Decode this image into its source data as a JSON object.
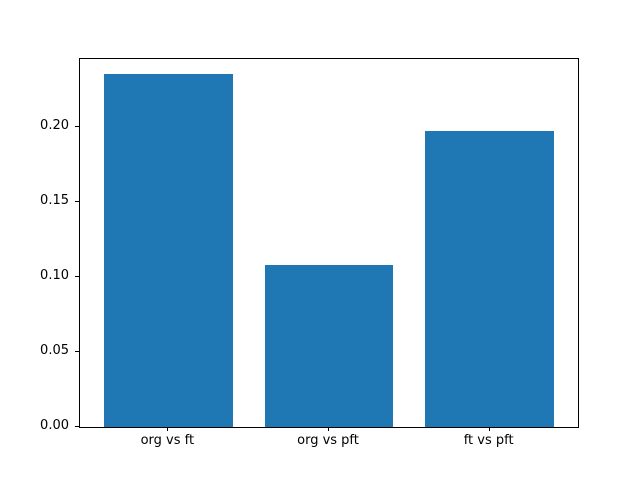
{
  "figure": {
    "background": "#ffffff",
    "bar_color": "#1f77b4",
    "spine_color": "#000000",
    "text_color": "#000000"
  },
  "chart_data": {
    "type": "bar",
    "title": "",
    "xlabel": "",
    "ylabel": "",
    "categories": [
      "org vs ft",
      "org vs pft",
      "ft vs pft"
    ],
    "values": [
      0.235,
      0.108,
      0.197
    ],
    "ylim": [
      0,
      0.2453
    ],
    "xlim": [
      -0.55,
      2.55
    ],
    "yticks": [
      0.0,
      0.05,
      0.1,
      0.15,
      0.2
    ],
    "ytick_labels": [
      "0.00",
      "0.05",
      "0.10",
      "0.15",
      "0.20"
    ],
    "bar_width_fraction": 0.8,
    "grid": false,
    "legend": null
  }
}
